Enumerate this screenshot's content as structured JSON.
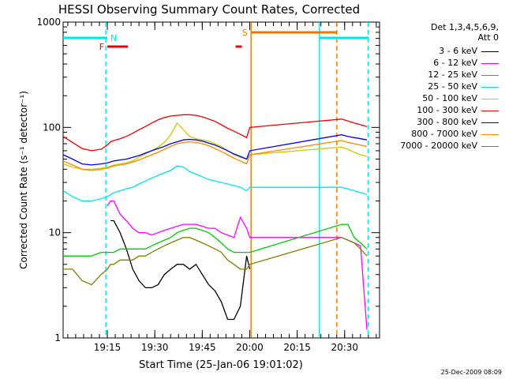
{
  "chart_data": {
    "type": "line",
    "title": "HESSI Observing Summary Count Rates, Corrected",
    "xlabel": "Start Time (25-Jan-06 19:01:02)",
    "ylabel": "Corrected Count Rate (s⁻¹ detector⁻¹)",
    "yscale": "log",
    "ylim": [
      1,
      1000
    ],
    "yticks": [
      {
        "value": 1,
        "label": "1"
      },
      {
        "value": 10,
        "label": "10"
      },
      {
        "value": 100,
        "label": "100"
      },
      {
        "value": 1000,
        "label": "1000"
      }
    ],
    "xlim_minutes": [
      0,
      100
    ],
    "xticks": [
      {
        "value": 13.97,
        "label": "19:15"
      },
      {
        "value": 28.97,
        "label": "19:30"
      },
      {
        "value": 43.97,
        "label": "19:45"
      },
      {
        "value": 58.97,
        "label": "20:00"
      },
      {
        "value": 73.97,
        "label": "20:15"
      },
      {
        "value": 88.97,
        "label": "20:30"
      }
    ],
    "legend_header": [
      "Det 1,3,4,5,6,9,",
      "Att 0"
    ],
    "legend_position": "right",
    "timestamp": "25-Dec-2009 08:09",
    "flags": [
      {
        "label": "N",
        "color": "#00e5ee",
        "segments": [
          [
            0,
            13.97
          ],
          [
            81.0,
            96.6
          ]
        ]
      },
      {
        "label": "F",
        "color": "#ee0000",
        "segments": [
          [
            14.0,
            20.5
          ],
          [
            54.5,
            56.5
          ]
        ]
      },
      {
        "label": "S",
        "color": "#ee7700",
        "segments": [
          [
            59.3,
            86.5
          ]
        ]
      }
    ],
    "vlines": [
      {
        "x": 13.5,
        "color": "#00e5ee",
        "style": "dashed"
      },
      {
        "x": 59.4,
        "color": "#ee7700",
        "style": "solid"
      },
      {
        "x": 81.0,
        "color": "#00e5ee",
        "style": "solid"
      },
      {
        "x": 86.5,
        "color": "#ee7700",
        "style": "dashed"
      },
      {
        "x": 96.4,
        "color": "#00e5ee",
        "style": "dashed"
      }
    ],
    "series": [
      {
        "name": "3 - 6 keV",
        "color": "#000000",
        "x": [
          0,
          3,
          6,
          9,
          12,
          14,
          15,
          16,
          18,
          20,
          22,
          24,
          26,
          28,
          30,
          32,
          34,
          36,
          38,
          40,
          42,
          44,
          46,
          48,
          50,
          52,
          54,
          56,
          58,
          59,
          88,
          90,
          92,
          94,
          96
        ],
        "y": [
          null,
          null,
          null,
          null,
          null,
          null,
          13,
          13,
          10,
          7,
          4.5,
          3.5,
          3,
          3,
          3.2,
          4,
          4.5,
          5,
          5,
          4.5,
          5,
          4,
          3.2,
          2.8,
          2.2,
          1.5,
          1.5,
          2,
          6,
          4.5,
          null,
          null,
          null,
          null,
          null
        ]
      },
      {
        "name": "6 - 12 keV",
        "color": "#ff00ff",
        "x": [
          0,
          3,
          6,
          9,
          12,
          14,
          15,
          16,
          18,
          20,
          22,
          24,
          26,
          28,
          30,
          32,
          34,
          36,
          38,
          40,
          42,
          44,
          46,
          48,
          50,
          52,
          54,
          56,
          58,
          59,
          88,
          90,
          92,
          94,
          96
        ],
        "y": [
          null,
          null,
          null,
          null,
          null,
          18,
          20,
          20,
          15,
          13,
          11,
          10,
          10,
          9.5,
          10,
          10.5,
          11,
          11.5,
          12,
          12,
          12,
          11.5,
          11,
          11,
          10,
          9.5,
          9,
          14,
          11,
          9,
          9,
          8.5,
          8,
          7.5,
          1.2
        ]
      },
      {
        "name": "12 - 25 keV",
        "color": "#00cc00",
        "x": [
          0,
          3,
          6,
          9,
          12,
          14,
          15,
          16,
          18,
          20,
          22,
          24,
          26,
          28,
          30,
          32,
          34,
          36,
          38,
          40,
          42,
          44,
          46,
          48,
          50,
          52,
          54,
          56,
          58,
          59,
          88,
          90,
          92,
          94,
          96
        ],
        "y": [
          6,
          6,
          6,
          6,
          6.5,
          6.5,
          6.5,
          6.5,
          7,
          7,
          7,
          7,
          7,
          7.5,
          8,
          8.5,
          9,
          10,
          10.5,
          11,
          11,
          10.5,
          10,
          9,
          8,
          7,
          6.5,
          6.5,
          6.5,
          6.5,
          12,
          12,
          9,
          8,
          7
        ]
      },
      {
        "name": "25 - 50 keV",
        "color": "#00e5ee",
        "x": [
          0,
          3,
          6,
          9,
          12,
          14,
          15,
          16,
          18,
          20,
          22,
          24,
          26,
          28,
          30,
          32,
          34,
          36,
          38,
          40,
          42,
          44,
          46,
          48,
          50,
          52,
          54,
          56,
          58,
          59,
          88,
          90,
          92,
          94,
          96
        ],
        "y": [
          25,
          22,
          20,
          20,
          21,
          22,
          23,
          24,
          25,
          26,
          27,
          29,
          31,
          33,
          35,
          37,
          39,
          43,
          42,
          38,
          36,
          34,
          32,
          31,
          30,
          29,
          28,
          27,
          25,
          27,
          27,
          26,
          25,
          24,
          23
        ]
      },
      {
        "name": "50 - 100 keV",
        "color": "#cccc00",
        "x": [
          0,
          3,
          6,
          9,
          12,
          14,
          15,
          16,
          18,
          20,
          22,
          24,
          26,
          28,
          30,
          32,
          34,
          36,
          38,
          40,
          42,
          44,
          46,
          48,
          50,
          52,
          54,
          56,
          58,
          59,
          88,
          90,
          92,
          94,
          96
        ],
        "y": [
          45,
          42,
          40,
          40,
          41,
          42,
          43,
          44,
          45,
          46,
          48,
          52,
          56,
          60,
          65,
          72,
          85,
          110,
          95,
          82,
          78,
          76,
          74,
          70,
          66,
          60,
          55,
          52,
          50,
          55,
          65,
          62,
          58,
          55,
          53
        ]
      },
      {
        "name": "100 - 300 keV",
        "color": "#ee0000",
        "x": [
          0,
          3,
          6,
          9,
          12,
          14,
          15,
          16,
          18,
          20,
          22,
          24,
          26,
          28,
          30,
          32,
          34,
          36,
          38,
          40,
          42,
          44,
          46,
          48,
          50,
          52,
          54,
          56,
          58,
          59,
          88,
          90,
          92,
          94,
          96
        ],
        "y": [
          82,
          72,
          63,
          60,
          62,
          68,
          73,
          75,
          78,
          82,
          88,
          95,
          102,
          110,
          118,
          124,
          128,
          130,
          132,
          132,
          130,
          126,
          120,
          114,
          106,
          98,
          92,
          86,
          80,
          100,
          120,
          115,
          110,
          106,
          102
        ]
      },
      {
        "name": "300 - 800 keV",
        "color": "#0000ee",
        "x": [
          0,
          3,
          6,
          9,
          12,
          14,
          15,
          16,
          18,
          20,
          22,
          24,
          26,
          28,
          30,
          32,
          34,
          36,
          38,
          40,
          42,
          44,
          46,
          48,
          50,
          52,
          54,
          56,
          58,
          59,
          88,
          90,
          92,
          94,
          96
        ],
        "y": [
          55,
          50,
          45,
          44,
          45,
          46,
          47,
          48,
          49,
          50,
          52,
          54,
          57,
          60,
          63,
          66,
          70,
          73,
          76,
          77,
          76,
          74,
          71,
          68,
          64,
          60,
          56,
          53,
          50,
          60,
          85,
          82,
          80,
          78,
          76
        ]
      },
      {
        "name": "800 - 7000 keV",
        "color": "#ff8800",
        "x": [
          0,
          3,
          6,
          9,
          12,
          14,
          15,
          16,
          18,
          20,
          22,
          24,
          26,
          28,
          30,
          32,
          34,
          36,
          38,
          40,
          42,
          44,
          46,
          48,
          50,
          52,
          54,
          56,
          58,
          59,
          88,
          90,
          92,
          94,
          96
        ],
        "y": [
          48,
          44,
          40,
          39,
          40,
          41,
          42,
          43,
          44,
          45,
          47,
          49,
          52,
          55,
          58,
          62,
          66,
          70,
          72,
          73,
          72,
          70,
          67,
          63,
          59,
          55,
          51,
          48,
          45,
          55,
          75,
          72,
          70,
          68,
          66
        ]
      },
      {
        "name": "7000 - 20000 keV",
        "color": "#808000",
        "x": [
          0,
          3,
          6,
          9,
          12,
          14,
          15,
          16,
          18,
          20,
          22,
          24,
          26,
          28,
          30,
          32,
          34,
          36,
          38,
          40,
          42,
          44,
          46,
          48,
          50,
          52,
          54,
          56,
          58,
          59,
          88,
          90,
          92,
          94,
          96
        ],
        "y": [
          4.5,
          4.5,
          3.5,
          3.2,
          4,
          4.5,
          5,
          5,
          5.5,
          5.5,
          5.5,
          6,
          6,
          6.5,
          7,
          7.5,
          8,
          8.5,
          9,
          9,
          8.5,
          8,
          7.5,
          7,
          6.5,
          5.5,
          5,
          4.5,
          4.5,
          5,
          9,
          8.5,
          8,
          7,
          6
        ]
      }
    ]
  }
}
